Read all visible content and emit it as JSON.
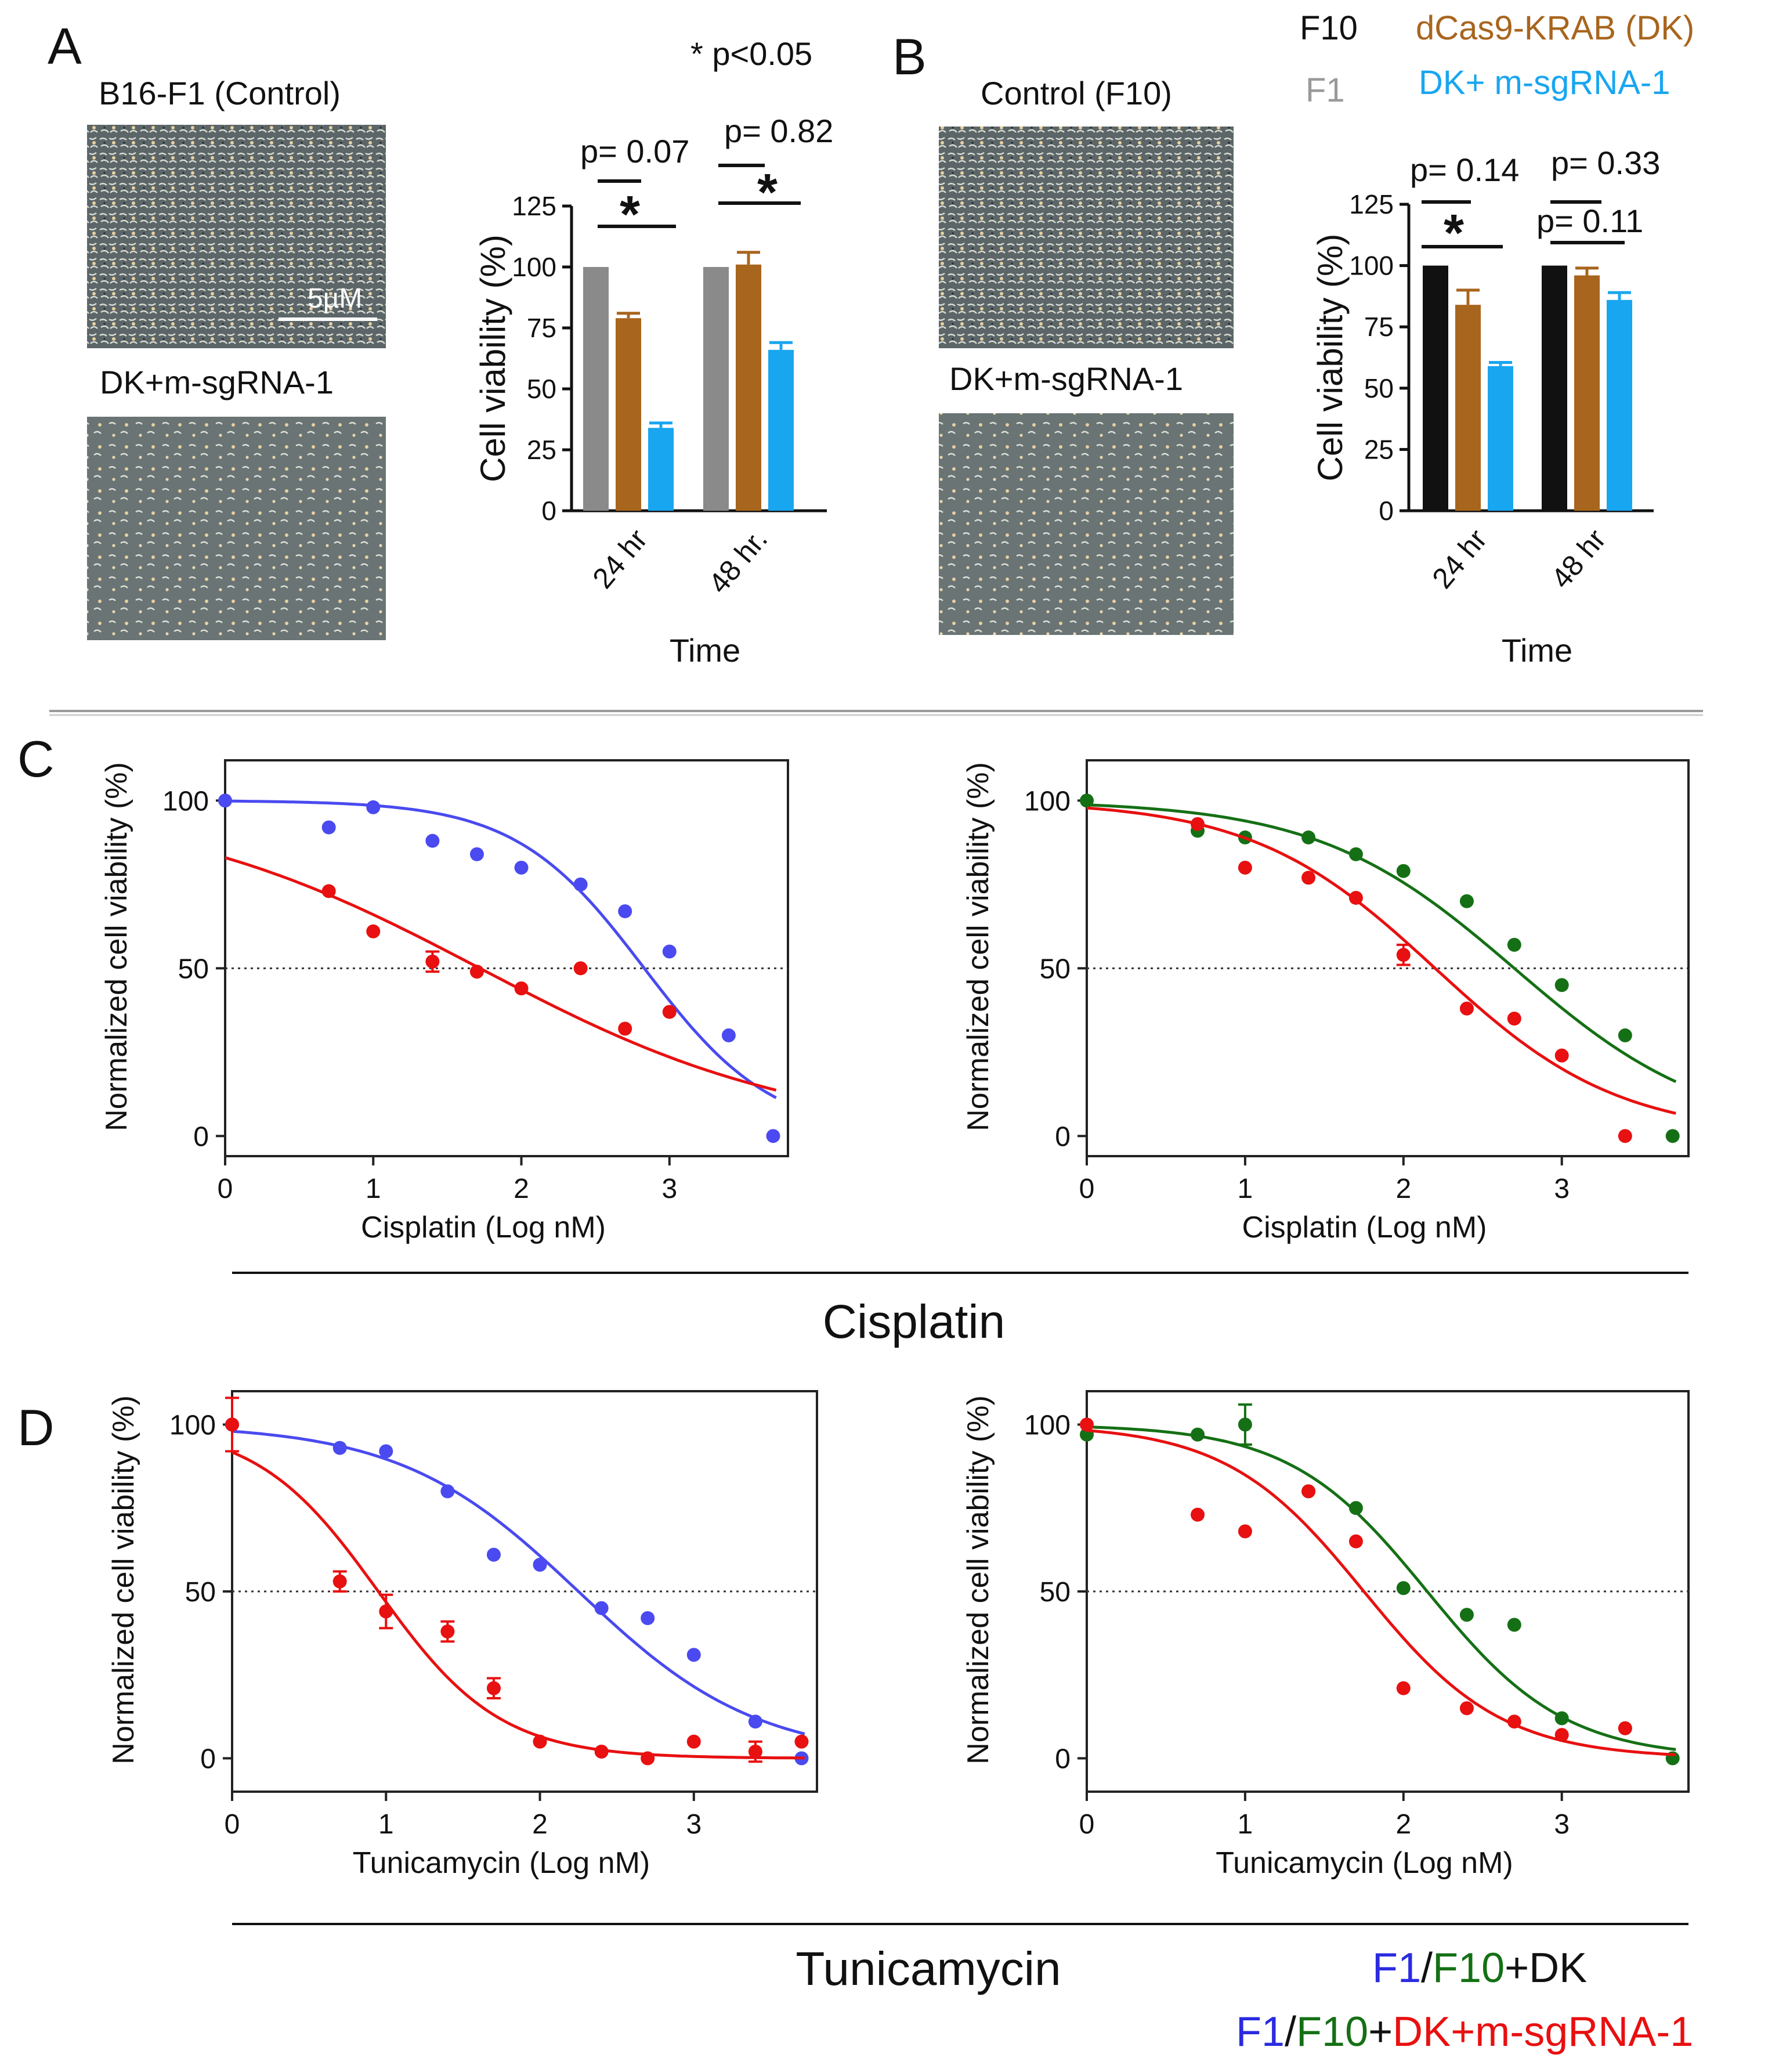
{
  "panels": {
    "A": {
      "letter": "A",
      "image_top_label": "B16-F1 (Control)",
      "image_bottom_label": "DK+m-sgRNA-1",
      "scale_bar_label": "5µM",
      "sig_note": "* p<0.05",
      "p_labels": [
        "p= 0.07",
        "p= 0.82"
      ],
      "star": "*"
    },
    "B": {
      "letter": "B",
      "image_top_label": "Control (F10)",
      "image_bottom_label": "DK+m-sgRNA-1",
      "p_labels": [
        "p= 0.14",
        "p= 0.33",
        "p= 0.11"
      ],
      "star": "*"
    },
    "C": {
      "letter": "C"
    },
    "D": {
      "letter": "D"
    }
  },
  "legend_top": {
    "items": [
      {
        "label": "F10",
        "color": "#111111"
      },
      {
        "label": "dCas9-KRAB (DK)",
        "color": "#a8651e"
      },
      {
        "label": "F1",
        "color": "#999999"
      },
      {
        "label": "DK+ m-sgRNA-1",
        "color": "#19a6f0"
      }
    ]
  },
  "section_labels": {
    "cisplatin": "Cisplatin",
    "tunicamycin": "Tunicamycin"
  },
  "legend_bottom": {
    "line1": [
      {
        "text": "F1",
        "color": "#2b2be0"
      },
      {
        "text": "/",
        "color": "#111111"
      },
      {
        "text": "F10",
        "color": "#157015"
      },
      {
        "text": "+DK",
        "color": "#111111"
      }
    ],
    "line2": [
      {
        "text": "F1",
        "color": "#2b2be0"
      },
      {
        "text": "/",
        "color": "#111111"
      },
      {
        "text": "F10",
        "color": "#157015"
      },
      {
        "text": "+",
        "color": "#111111"
      },
      {
        "text": "DK+m-sgRNA-1",
        "color": "#e81010"
      }
    ]
  },
  "chart_data": [
    {
      "id": "A_bar",
      "type": "bar",
      "categories": [
        "24 hr",
        "48 hr."
      ],
      "series": [
        {
          "values": [
            100,
            100
          ],
          "errors": [
            0,
            0
          ],
          "color": "#8a8a8a"
        },
        {
          "values": [
            79,
            101
          ],
          "errors": [
            2,
            5
          ],
          "color": "#a8651e"
        },
        {
          "values": [
            34,
            66
          ],
          "errors": [
            2,
            3
          ],
          "color": "#19a6f0"
        }
      ],
      "xlabel": "Time",
      "ylabel": "Cell viability (%)",
      "ylim": [
        0,
        125
      ],
      "yticks": [
        0,
        25,
        50,
        75,
        100,
        125
      ]
    },
    {
      "id": "B_bar",
      "type": "bar",
      "categories": [
        "24 hr",
        "48 hr"
      ],
      "series": [
        {
          "values": [
            100,
            100
          ],
          "errors": [
            0,
            0
          ],
          "color": "#111111"
        },
        {
          "values": [
            84,
            96
          ],
          "errors": [
            6,
            3
          ],
          "color": "#a8651e"
        },
        {
          "values": [
            59,
            86
          ],
          "errors": [
            1.5,
            3
          ],
          "color": "#19a6f0"
        }
      ],
      "xlabel": "Time",
      "ylabel": "Cell viability (%)",
      "ylim": [
        0,
        125
      ],
      "yticks": [
        0,
        25,
        50,
        75,
        100,
        125
      ]
    },
    {
      "id": "C_left",
      "type": "scatter",
      "xlabel": "Cisplatin (Log nM)",
      "ylabel": "Normalized cell viability (%)",
      "xlim": [
        0,
        3.8
      ],
      "ylim": [
        -6,
        112
      ],
      "xticks": [
        0,
        1,
        2,
        3
      ],
      "yticks": [
        0,
        50,
        100
      ],
      "reference_line": 50,
      "series": [
        {
          "color": "#4a4af0",
          "x": [
            0,
            0.7,
            1,
            1.4,
            1.7,
            2,
            2.4,
            2.7,
            3,
            3.4,
            3.7
          ],
          "y": [
            100,
            92,
            98,
            88,
            84,
            80,
            75,
            67,
            55,
            30,
            0
          ],
          "fit": {
            "top": 100,
            "bottom": 0,
            "logIC50": 2.83,
            "hill": 1.0
          }
        },
        {
          "color": "#e81010",
          "x": [
            0.7,
            1,
            1.4,
            1.7,
            2,
            2.4,
            2.7,
            3
          ],
          "y": [
            73,
            61,
            52,
            49,
            44,
            50,
            32,
            37
          ],
          "errors": [
            0,
            0,
            3,
            0,
            0,
            0,
            0,
            0
          ],
          "fit": {
            "top": 100,
            "bottom": 0,
            "logIC50": 1.72,
            "hill": 0.4
          }
        }
      ]
    },
    {
      "id": "C_right",
      "type": "scatter",
      "xlabel": "Cisplatin (Log nM)",
      "ylabel": "Normalized cell viability (%)",
      "xlim": [
        0,
        3.8
      ],
      "ylim": [
        -6,
        112
      ],
      "xticks": [
        0,
        1,
        2,
        3
      ],
      "yticks": [
        0,
        50,
        100
      ],
      "reference_line": 50,
      "series": [
        {
          "color": "#157015",
          "x": [
            0,
            0.7,
            1,
            1.4,
            1.7,
            2,
            2.4,
            2.7,
            3,
            3.4,
            3.7
          ],
          "y": [
            100,
            91,
            89,
            89,
            84,
            79,
            70,
            57,
            45,
            30,
            0
          ],
          "fit": {
            "top": 100,
            "bottom": 0,
            "logIC50": 2.7,
            "hill": 0.7
          }
        },
        {
          "color": "#e81010",
          "x": [
            0.7,
            1,
            1.4,
            1.7,
            2,
            2.4,
            2.7,
            3,
            3.4
          ],
          "y": [
            93,
            80,
            77,
            71,
            54,
            38,
            35,
            24,
            0
          ],
          "errors": [
            0,
            0,
            0,
            0,
            3,
            0,
            0,
            0,
            0
          ],
          "fit": {
            "top": 100,
            "bottom": 0,
            "logIC50": 2.2,
            "hill": 0.75
          }
        }
      ]
    },
    {
      "id": "D_left",
      "type": "scatter",
      "xlabel": "Tunicamycin (Log nM)",
      "ylabel": "Normalized cell viability (%)",
      "xlim": [
        0,
        3.8
      ],
      "ylim": [
        -10,
        110
      ],
      "xticks": [
        0,
        1,
        2,
        3
      ],
      "yticks": [
        0,
        50,
        100
      ],
      "reference_line": 50,
      "series": [
        {
          "color": "#4a4af0",
          "x": [
            0,
            0.7,
            1,
            1.4,
            1.7,
            2,
            2.4,
            2.7,
            3,
            3.4,
            3.7
          ],
          "y": [
            100,
            93,
            92,
            80,
            61,
            58,
            45,
            42,
            31,
            11,
            0
          ],
          "fit": {
            "top": 100,
            "bottom": 0,
            "logIC50": 2.25,
            "hill": 0.75
          }
        },
        {
          "color": "#e81010",
          "x": [
            0,
            0.7,
            1,
            1.4,
            1.7,
            2,
            2.4,
            2.7,
            3,
            3.4,
            3.7
          ],
          "y": [
            100,
            53,
            44,
            38,
            21,
            5,
            2,
            0,
            5,
            2,
            5
          ],
          "errors": [
            8,
            3,
            5,
            3,
            3,
            0,
            0,
            0,
            0,
            3,
            0
          ],
          "fit": {
            "top": 100,
            "bottom": 0,
            "logIC50": 0.95,
            "hill": 1.1
          }
        }
      ]
    },
    {
      "id": "D_right",
      "type": "scatter",
      "xlabel": "Tunicamycin (Log nM)",
      "ylabel": "Normalized cell viability (%)",
      "xlim": [
        0,
        3.8
      ],
      "ylim": [
        -10,
        110
      ],
      "xticks": [
        0,
        1,
        2,
        3
      ],
      "yticks": [
        0,
        50,
        100
      ],
      "reference_line": 50,
      "series": [
        {
          "color": "#157015",
          "x": [
            0,
            0.7,
            1,
            1.4,
            1.7,
            2,
            2.4,
            2.7,
            3,
            3.4,
            3.7
          ],
          "y": [
            97,
            97,
            100,
            80,
            75,
            51,
            43,
            40,
            12,
            9,
            0
          ],
          "errors": [
            0,
            0,
            6,
            0,
            0,
            0,
            0,
            0,
            0,
            0,
            0
          ],
          "fit": {
            "top": 100,
            "bottom": 0,
            "logIC50": 2.15,
            "hill": 1.0
          }
        },
        {
          "color": "#e81010",
          "x": [
            0,
            0.7,
            1,
            1.4,
            1.7,
            2,
            2.4,
            2.7,
            3,
            3.4
          ],
          "y": [
            100,
            73,
            68,
            80,
            65,
            21,
            15,
            11,
            7,
            9
          ],
          "fit": {
            "top": 100,
            "bottom": 0,
            "logIC50": 1.75,
            "hill": 1.0
          }
        }
      ]
    }
  ]
}
